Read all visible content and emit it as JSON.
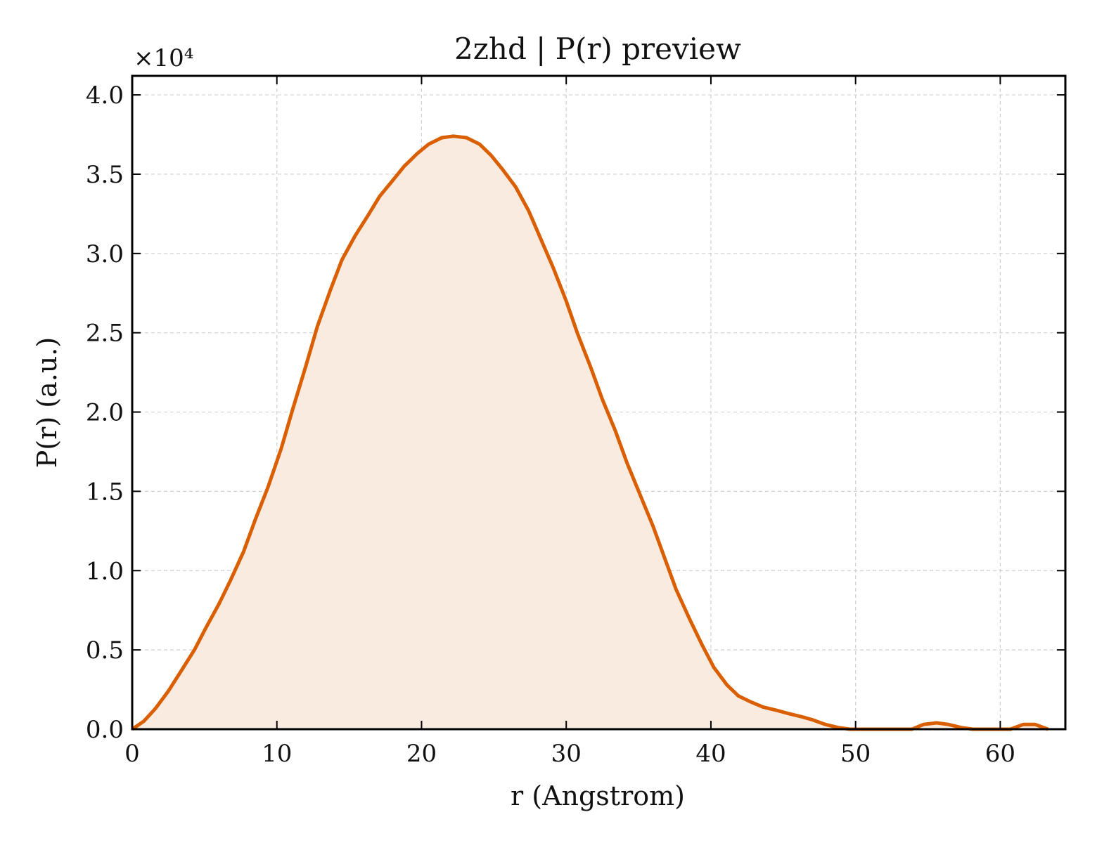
{
  "chart_data": {
    "type": "area",
    "title": "2zhd | P(r) preview",
    "xlabel": "r (Angstrom)",
    "ylabel": "P(r) (a.u.)",
    "y_offset_label": "×10⁴",
    "y_scale_factor": 10000,
    "xlim": [
      0,
      64.5
    ],
    "ylim": [
      0,
      41200
    ],
    "x_ticks": [
      0,
      10,
      20,
      30,
      40,
      50,
      60
    ],
    "x_tick_labels": [
      "0",
      "10",
      "20",
      "30",
      "40",
      "50",
      "60"
    ],
    "y_ticks": [
      0,
      5000,
      10000,
      15000,
      20000,
      25000,
      30000,
      35000,
      40000
    ],
    "y_tick_labels": [
      "0.0",
      "0.5",
      "1.0",
      "1.5",
      "2.0",
      "2.5",
      "3.0",
      "3.5",
      "4.0"
    ],
    "grid": true,
    "colors": {
      "line": "#d95f02",
      "fill": "#f9ebe0"
    },
    "series": [
      {
        "x": [
          0,
          0.8,
          1.6,
          2.5,
          3.4,
          4.3,
          5.1,
          6.0,
          6.8,
          7.7,
          8.5,
          9.4,
          10.3,
          11.1,
          12.0,
          12.8,
          13.7,
          14.5,
          15.4,
          16.3,
          17.1,
          18.0,
          18.8,
          19.7,
          20.5,
          21.4,
          22.2,
          23.1,
          24.0,
          24.8,
          25.6,
          26.5,
          27.4,
          28.2,
          29.1,
          30.0,
          30.8,
          31.7,
          32.5,
          33.4,
          34.2,
          35.1,
          36.0,
          36.8,
          37.6,
          38.5,
          39.4,
          40.2,
          41.1,
          41.9,
          42.8,
          43.6,
          44.5,
          45.3,
          46.2,
          47.0,
          47.9,
          48.8,
          49.6,
          50.5,
          51.3,
          52.2,
          53.0,
          53.9,
          54.7,
          55.6,
          56.4,
          57.3,
          58.1,
          59.0,
          59.9,
          60.7,
          61.6,
          62.4,
          63.3
        ],
        "y": [
          0,
          500,
          1300,
          2400,
          3700,
          5000,
          6400,
          7900,
          9400,
          11200,
          13200,
          15300,
          17700,
          20200,
          22900,
          25400,
          27700,
          29600,
          31100,
          32400,
          33600,
          34600,
          35500,
          36300,
          36900,
          37300,
          37400,
          37300,
          36900,
          36200,
          35300,
          34200,
          32700,
          31000,
          29100,
          27000,
          24900,
          22800,
          20800,
          18800,
          16800,
          14800,
          12800,
          10800,
          8800,
          7000,
          5300,
          3900,
          2800,
          2100,
          1700,
          1400,
          1200,
          1000,
          800,
          600,
          300,
          100,
          0,
          0,
          0,
          0,
          0,
          0,
          300,
          400,
          300,
          100,
          0,
          0,
          0,
          0,
          300,
          300,
          0
        ]
      }
    ]
  }
}
